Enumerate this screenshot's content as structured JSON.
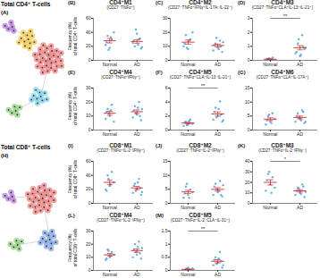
{
  "diagrams": [
    {
      "panel": "(A)",
      "title": "Total CD4⁺ T-cells",
      "clusters": [
        {
          "color": "#b57edc",
          "nodes": 5
        },
        {
          "color": "#f2c94c",
          "nodes": 12
        },
        {
          "color": "#f08080",
          "nodes": 30
        },
        {
          "color": "#7fd3e8",
          "nodes": 10
        },
        {
          "color": "#8fd17f",
          "nodes": 6
        }
      ]
    },
    {
      "panel": "(H)",
      "title": "Total CD8⁺ T-cells",
      "clusters": [
        {
          "color": "#b57edc",
          "nodes": 5
        },
        {
          "color": "#f08080",
          "nodes": 28
        },
        {
          "color": "#7fa8e8",
          "nodes": 12
        },
        {
          "color": "#8fd17f",
          "nodes": 6
        }
      ]
    }
  ],
  "chart_data": [
    {
      "panel": "(B)",
      "type": "scatter",
      "title": "CD4⁺M1",
      "subtitle": "(CD27⁻TNFα⁺)",
      "y_label": [
        "Frequency (%)",
        "of total CD4⁺ T-cells"
      ],
      "categories": [
        "Normal",
        "AD"
      ],
      "color": "#3d9be0",
      "points": [
        [
          22,
          35,
          18,
          30,
          40,
          26,
          15,
          33
        ],
        [
          25,
          20,
          38,
          30,
          17,
          28,
          44,
          22,
          31,
          19
        ]
      ],
      "values": [
        28,
        27
      ],
      "errors": [
        3.2,
        2.6
      ],
      "ylim": [
        0,
        60
      ],
      "yticks": [
        0,
        20,
        40,
        60
      ]
    },
    {
      "panel": "(C)",
      "type": "scatter",
      "title": "CD4⁺M2",
      "subtitle": "(CD27⁻TNFα⁺IFNγ⁺IL-17A⁻IL-22⁺)",
      "categories": [
        "Normal",
        "AD"
      ],
      "color": "#3d9be0",
      "points": [
        [
          10,
          18,
          8,
          15,
          20,
          12,
          9,
          14
        ],
        [
          7,
          12,
          9,
          14,
          6,
          11,
          16,
          8,
          10,
          13
        ]
      ],
      "values": [
        13,
        10.6
      ],
      "errors": [
        1.5,
        1.0
      ],
      "ylim": [
        0,
        30
      ],
      "yticks": [
        0,
        10,
        20,
        30
      ]
    },
    {
      "panel": "(D)",
      "type": "scatter",
      "title": "CD4⁺M3",
      "subtitle": "(CD27⁻TNFα⁺CLA⁺IL-13⁺IL-21⁺)",
      "categories": [
        "Normal",
        "AD"
      ],
      "color": "#3d9be0",
      "points": [
        [
          0,
          0.1,
          0.05,
          0.2,
          0,
          0.1,
          0.15,
          0.05
        ],
        [
          0.5,
          1.2,
          0.3,
          1.8,
          0.8,
          0.6,
          1.5,
          0.4,
          1.0,
          0.9
        ]
      ],
      "values": [
        0.08,
        0.9
      ],
      "errors": [
        0.03,
        0.15
      ],
      "ylim": [
        0,
        3
      ],
      "yticks": [
        0,
        1,
        2,
        3
      ],
      "annotation": "**"
    },
    {
      "panel": "(E)",
      "type": "scatter",
      "title": "CD4⁺M4",
      "subtitle": "(CD27⁻TNFα⁺IFNγ⁺)",
      "y_label": [
        "Frequency (%)",
        "of total CD4⁺ T-cells"
      ],
      "categories": [
        "Normal",
        "AD"
      ],
      "color": "#3d9be0",
      "points": [
        [
          8,
          15,
          10,
          18,
          6,
          13,
          12,
          14
        ],
        [
          9,
          17,
          11,
          20,
          7,
          14,
          12,
          16,
          10,
          15
        ]
      ],
      "values": [
        12,
        13.1
      ],
      "errors": [
        1.4,
        1.3
      ],
      "ylim": [
        0,
        30
      ],
      "yticks": [
        0,
        10,
        20,
        30
      ]
    },
    {
      "panel": "(F)",
      "type": "scatter",
      "title": "CD4⁺M5",
      "subtitle": "(CD27⁻TNFα⁺CLA⁺IL-13⁻IL-21⁺)",
      "categories": [
        "Normal",
        "AD"
      ],
      "color": "#3d9be0",
      "points": [
        [
          0.6,
          1.2,
          0.8,
          1.5,
          0.9,
          1.1,
          0.7,
          1.3
        ],
        [
          1.5,
          3.2,
          2.0,
          4.1,
          1.2,
          2.6,
          1.8,
          3.0,
          2.2,
          1.4
        ]
      ],
      "values": [
        1.0,
        2.3
      ],
      "errors": [
        0.1,
        0.3
      ],
      "ylim": [
        0,
        6
      ],
      "yticks": [
        0,
        2,
        4,
        6
      ],
      "annotation": "**"
    },
    {
      "panel": "(G)",
      "type": "scatter",
      "title": "CD4⁺M6",
      "subtitle": "(CD27⁻TNFα⁺CLA⁺IL-17A⁺)",
      "categories": [
        "Normal",
        "AD"
      ],
      "color": "#3d9be0",
      "points": [
        [
          2,
          5,
          3,
          6,
          4,
          3.5,
          5.5,
          2.5
        ],
        [
          3,
          6,
          4,
          7,
          2.5,
          5,
          4.5,
          3.5,
          6.5,
          3
        ]
      ],
      "values": [
        3.9,
        4.5
      ],
      "errors": [
        0.5,
        0.5
      ],
      "ylim": [
        0,
        15
      ],
      "yticks": [
        0,
        5,
        10,
        15
      ]
    },
    {
      "panel": "(I)",
      "type": "scatter",
      "title": "CD8⁺M1",
      "subtitle": "(CD27⁻TNFα⁺IL-2⁻IFNγ⁺)",
      "y_label": [
        "Frequency (%)",
        "of total CD8⁺ T-cells"
      ],
      "categories": [
        "Normal",
        "AD"
      ],
      "color": "#3d9be0",
      "points": [
        [
          20,
          40,
          25,
          45,
          30,
          18,
          35,
          27
        ],
        [
          15,
          28,
          20,
          35,
          12,
          25,
          18,
          30,
          22,
          16
        ]
      ],
      "values": [
        30,
        22
      ],
      "errors": [
        3.4,
        2.3
      ],
      "ylim": [
        0,
        60
      ],
      "yticks": [
        0,
        20,
        40,
        60
      ]
    },
    {
      "panel": "(J)",
      "type": "scatter",
      "title": "CD8⁺M2",
      "subtitle": "(CD27⁻TNFα⁺IL-2⁺IFNγ⁺)",
      "categories": [
        "Normal",
        "AD"
      ],
      "color": "#3d9be0",
      "points": [
        [
          2,
          6,
          3,
          5,
          4,
          3.5,
          7,
          2
        ],
        [
          3,
          7,
          4,
          8,
          2.5,
          6,
          5,
          4.5,
          3,
          6.5
        ]
      ],
      "values": [
        4.1,
        5
      ],
      "errors": [
        0.6,
        0.6
      ],
      "ylim": [
        0,
        15
      ],
      "yticks": [
        0,
        5,
        10,
        15
      ]
    },
    {
      "panel": "(K)",
      "type": "scatter",
      "title": "CD8⁺M3",
      "subtitle": "(CD27⁻TNFα⁺IL-2⁻IFNγ⁻)",
      "categories": [
        "Normal",
        "AD"
      ],
      "color": "#3d9be0",
      "points": [
        [
          12,
          28,
          18,
          25,
          15,
          22,
          30,
          10
        ],
        [
          8,
          15,
          10,
          18,
          6,
          12,
          14,
          9,
          16,
          11
        ]
      ],
      "values": [
        20,
        11.9
      ],
      "errors": [
        2.5,
        1.2
      ],
      "ylim": [
        0,
        40
      ],
      "yticks": [
        0,
        10,
        20,
        30,
        40
      ],
      "annotation": "*"
    },
    {
      "panel": "(L)",
      "type": "scatter",
      "title": "CD8⁺M4",
      "subtitle": "(CD27⁻TNFα⁺IL-2⁻IFNγ⁺)",
      "y_label": [
        "Frequency (%)",
        "of total CD8⁺ T-cells"
      ],
      "categories": [
        "Normal",
        "AD"
      ],
      "color": "#3d9be0",
      "points": [
        [
          8,
          16,
          10,
          14,
          12,
          9,
          15,
          11
        ],
        [
          10,
          20,
          12,
          22,
          9,
          16,
          14,
          18,
          13,
          17
        ]
      ],
      "values": [
        11.9,
        15.1
      ],
      "errors": [
        1.0,
        1.3
      ],
      "ylim": [
        0,
        30
      ],
      "yticks": [
        0,
        10,
        20,
        30
      ]
    },
    {
      "panel": "(M)",
      "type": "scatter",
      "title": "CD8⁺M5",
      "subtitle": "(CD27⁻TNFα⁺IL-2⁻CLA⁺IL-31⁺)",
      "categories": [
        "Normal",
        "AD"
      ],
      "color": "#3d9be0",
      "points": [
        [
          0,
          0.05,
          0.1,
          0.02,
          0.08,
          0,
          0.06,
          0.04
        ],
        [
          0.2,
          0.5,
          0.3,
          0.7,
          0.1,
          0.4,
          0.25,
          0.45,
          0.35,
          0.2
        ]
      ],
      "values": [
        0.04,
        0.35
      ],
      "errors": [
        0.01,
        0.06
      ],
      "ylim": [
        0,
        1.5
      ],
      "yticks": [
        0,
        0.5,
        1,
        1.5
      ],
      "annotation": "**"
    }
  ]
}
